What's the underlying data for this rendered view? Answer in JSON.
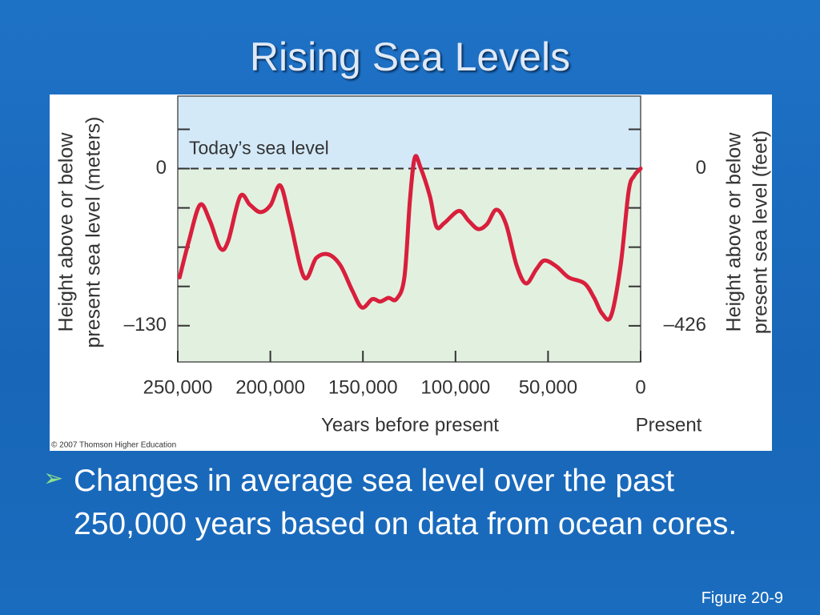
{
  "title": "Rising Sea Levels",
  "chart_data": {
    "type": "line",
    "ylabel": [
      "Height above or below",
      "present sea level (meters)"
    ],
    "y2label": [
      "Height above or below",
      "present sea level (feet)"
    ],
    "xlabel": "Years before present",
    "x_end_label": "Present",
    "annotation": "Today’s sea level",
    "credit": "© 2007 Thomson Higher Education",
    "xlim": [
      250000,
      0
    ],
    "xticks": [
      {
        "value": 250000,
        "label": "250,000"
      },
      {
        "value": 200000,
        "label": "200,000"
      },
      {
        "value": 150000,
        "label": "150,000"
      },
      {
        "value": 100000,
        "label": "100,000"
      },
      {
        "value": 50000,
        "label": "50,000"
      },
      0
    ],
    "ylim": [
      -160,
      60
    ],
    "yticks": [
      0,
      {
        "value": -130,
        "label": "–130"
      }
    ],
    "minor_yticks": [
      32.5,
      -32.5,
      -65,
      -97.5
    ],
    "y2lim": [
      -524,
      197
    ],
    "y2ticks": [
      0,
      {
        "value": -426,
        "label": "–426"
      }
    ],
    "above_color": "#d3e9f8",
    "below_color": "#e2f0e0",
    "x": [
      249000,
      244000,
      238000,
      232700,
      227000,
      222800,
      216300,
      211000,
      205400,
      199800,
      194600,
      189400,
      181700,
      175200,
      168700,
      162200,
      155700,
      150500,
      144900,
      140600,
      136200,
      131900,
      127600,
      124600,
      122000,
      118900,
      113800,
      110300,
      106000,
      98200,
      93000,
      87800,
      83000,
      77900,
      72700,
      67000,
      61900,
      56200,
      51900,
      45400,
      38900,
      30300,
      25100,
      20800,
      16000,
      10800,
      6500,
      3500,
      0
    ],
    "series": [
      {
        "color": "#d81f3c",
        "values": [
          -90,
          -60,
          -30,
          -43,
          -66,
          -60,
          -23,
          -30,
          -36,
          -30,
          -14,
          -43,
          -90,
          -74,
          -71,
          -80,
          -101,
          -115,
          -108,
          -110,
          -107,
          -108,
          -90,
          -26,
          9,
          1,
          -23,
          -48,
          -45,
          -35,
          -43,
          -50,
          -46,
          -34,
          -46,
          -80,
          -95,
          -83,
          -76,
          -81,
          -90,
          -95,
          -107,
          -120,
          -122,
          -80,
          -19,
          -6,
          0
        ]
      }
    ]
  },
  "bullet": "Changes in average sea level over the past 250,000 years based on data from ocean cores.",
  "figure_label": "Figure 20-9"
}
